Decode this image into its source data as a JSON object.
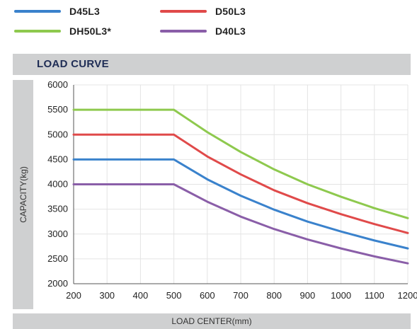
{
  "legend": [
    {
      "name": "D45L3",
      "color": "#3a82cc"
    },
    {
      "name": "D50L3",
      "color": "#e04a4a"
    },
    {
      "name": "DH50L3*",
      "color": "#8ec94e"
    },
    {
      "name": "D40L3",
      "color": "#8a5ea8"
    }
  ],
  "chart_data": {
    "type": "line",
    "title": "LOAD CURVE",
    "xlabel": "LOAD CENTER(mm)",
    "ylabel": "CAPACITY(kg)",
    "xlim": [
      200,
      1200
    ],
    "ylim": [
      2000,
      6000
    ],
    "xticks": [
      200,
      300,
      400,
      500,
      600,
      700,
      800,
      900,
      1000,
      1100,
      1200
    ],
    "yticks": [
      2000,
      2500,
      3000,
      3500,
      4000,
      4500,
      5000,
      5500,
      6000
    ],
    "grid": true,
    "legend_position": "top",
    "x": [
      200,
      300,
      400,
      500,
      600,
      700,
      800,
      900,
      1000,
      1100,
      1200
    ],
    "series": [
      {
        "name": "DH50L3*",
        "color": "#8ec94e",
        "values": [
          5500,
          5500,
          5500,
          5500,
          5050,
          4650,
          4300,
          4000,
          3750,
          3520,
          3320
        ]
      },
      {
        "name": "D50L3",
        "color": "#e04a4a",
        "values": [
          5000,
          5000,
          5000,
          5000,
          4560,
          4200,
          3880,
          3620,
          3400,
          3200,
          3020
        ]
      },
      {
        "name": "D45L3",
        "color": "#3a82cc",
        "values": [
          4500,
          4500,
          4500,
          4500,
          4100,
          3770,
          3490,
          3250,
          3050,
          2870,
          2710
        ]
      },
      {
        "name": "D40L3",
        "color": "#8a5ea8",
        "values": [
          4000,
          4000,
          4000,
          4000,
          3650,
          3350,
          3100,
          2890,
          2710,
          2550,
          2410
        ]
      }
    ]
  }
}
